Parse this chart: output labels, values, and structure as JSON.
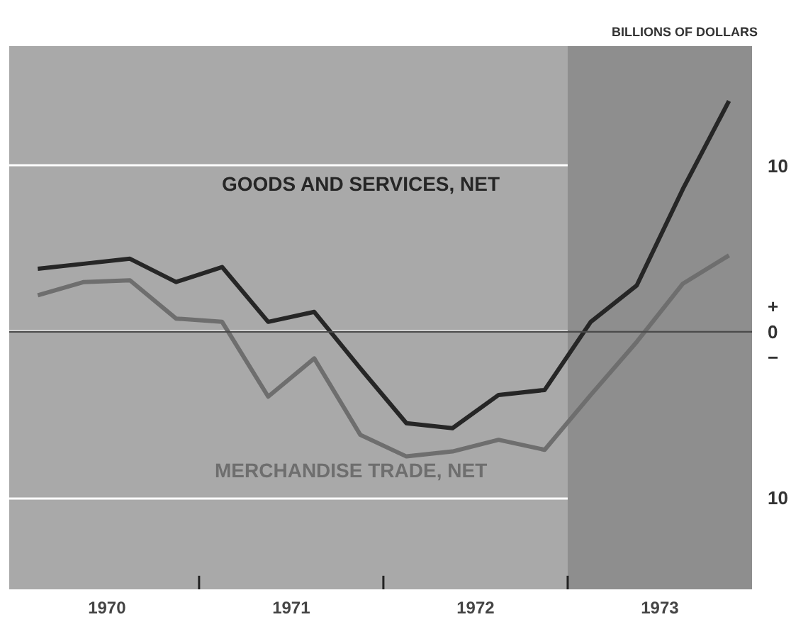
{
  "chart_data": {
    "type": "line",
    "ylabel": "BILLIONS OF DOLLARS",
    "x": [
      1970.125,
      1970.375,
      1970.625,
      1970.875,
      1971.125,
      1971.375,
      1971.625,
      1971.875,
      1972.125,
      1972.375,
      1972.625,
      1972.875,
      1973.125,
      1973.375,
      1973.625,
      1973.875
    ],
    "series": [
      {
        "name": "GOODS AND SERVICES, NET",
        "color": "#262626",
        "values": [
          3.8,
          4.1,
          4.4,
          3.0,
          3.9,
          0.6,
          1.2,
          -2.2,
          -5.5,
          -5.8,
          -3.8,
          -3.5,
          0.6,
          2.8,
          8.6,
          13.9
        ]
      },
      {
        "name": "MERCHANDISE TRADE, NET",
        "color": "#6e6e6e",
        "values": [
          2.2,
          3.0,
          3.1,
          0.8,
          0.6,
          -3.9,
          -1.6,
          -6.2,
          -7.5,
          -7.2,
          -6.5,
          -7.1,
          -3.8,
          -0.6,
          2.9,
          4.6
        ]
      }
    ],
    "xlim": [
      1969.97,
      1974.0
    ],
    "xticks": [
      {
        "value": 1970.5,
        "label": "1970"
      },
      {
        "value": 1971,
        "label": null
      },
      {
        "value": 1971.5,
        "label": "1971"
      },
      {
        "value": 1972,
        "label": null
      },
      {
        "value": 1972.5,
        "label": "1972"
      },
      {
        "value": 1973,
        "label": null
      },
      {
        "value": 1973.5,
        "label": "1973"
      }
    ],
    "ylim": [
      -15.5,
      17.2
    ],
    "yticks": [
      10,
      {
        "value": 0,
        "label": "+\n0\n−"
      },
      {
        "value": -10,
        "label": "10"
      }
    ],
    "grid": "y",
    "ref_lines": [
      {
        "axis": "y",
        "value": 0,
        "color": "#4a4a4a"
      }
    ],
    "bands": [
      {
        "axis": "x",
        "from": 1973,
        "to": 1974.0,
        "color": "#8e8e8e"
      }
    ],
    "legend": false,
    "line_style": "solid",
    "marker": "none"
  }
}
